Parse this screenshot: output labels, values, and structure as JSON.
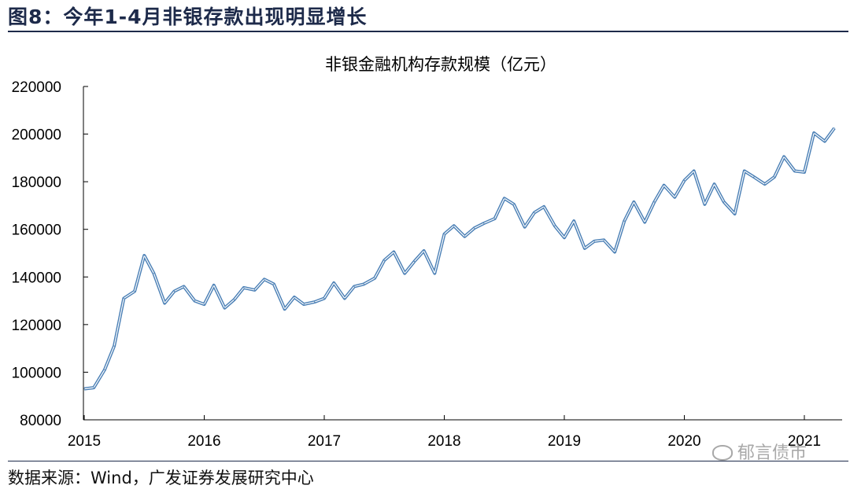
{
  "header": {
    "figure_title": "图8：今年1-4月非银存款出现明显增长"
  },
  "footer": {
    "source": "数据来源：Wind，广发证券发展研究中心",
    "watermark": "郁言债市"
  },
  "chart_data": {
    "type": "line",
    "title": "非银金融机构存款规模（亿元）",
    "xlabel": "",
    "ylabel": "",
    "ylim": [
      80000,
      220000
    ],
    "yticks": [
      80000,
      100000,
      120000,
      140000,
      160000,
      180000,
      200000,
      220000
    ],
    "ytick_labels": [
      "80000",
      "100000",
      "120000",
      "140000",
      "160000",
      "180000",
      "200000",
      "220000"
    ],
    "xticks": [
      2015,
      2016,
      2017,
      2018,
      2019,
      2020,
      2021
    ],
    "xtick_labels": [
      "2015",
      "2016",
      "2017",
      "2018",
      "2019",
      "2020",
      "2021"
    ],
    "xlim": [
      2015,
      2021.33
    ],
    "grid": false,
    "legend": "none",
    "line_color": "#4a7fb5",
    "series": [
      {
        "name": "",
        "x": [
          2015.0,
          2015.08,
          2015.17,
          2015.25,
          2015.33,
          2015.42,
          2015.5,
          2015.58,
          2015.67,
          2015.75,
          2015.83,
          2015.92,
          2016.0,
          2016.08,
          2016.17,
          2016.25,
          2016.33,
          2016.42,
          2016.5,
          2016.58,
          2016.67,
          2016.75,
          2016.83,
          2016.92,
          2017.0,
          2017.08,
          2017.17,
          2017.25,
          2017.33,
          2017.42,
          2017.5,
          2017.58,
          2017.67,
          2017.75,
          2017.83,
          2017.92,
          2018.0,
          2018.08,
          2018.17,
          2018.25,
          2018.33,
          2018.42,
          2018.5,
          2018.58,
          2018.67,
          2018.75,
          2018.83,
          2018.92,
          2019.0,
          2019.08,
          2019.17,
          2019.25,
          2019.33,
          2019.42,
          2019.5,
          2019.58,
          2019.67,
          2019.75,
          2019.83,
          2019.92,
          2020.0,
          2020.08,
          2020.17,
          2020.25,
          2020.33,
          2020.42,
          2020.5,
          2020.58,
          2020.67,
          2020.75,
          2020.83,
          2020.92,
          2021.0,
          2021.08,
          2021.17,
          2021.25
        ],
        "values": [
          93000,
          93500,
          101000,
          111000,
          131000,
          134000,
          149000,
          141500,
          129000,
          134000,
          136000,
          130000,
          128500,
          136500,
          127000,
          130500,
          135500,
          134500,
          139000,
          137000,
          126500,
          131500,
          128500,
          129500,
          131000,
          137500,
          131000,
          136000,
          137000,
          139500,
          147000,
          150500,
          141500,
          146500,
          151000,
          141500,
          158000,
          161500,
          157000,
          160500,
          162500,
          164500,
          173000,
          170500,
          161000,
          167000,
          169500,
          161500,
          156500,
          163500,
          152000,
          155000,
          155500,
          150500,
          163500,
          171500,
          163000,
          171500,
          178500,
          173500,
          180500,
          184500,
          170500,
          179000,
          171500,
          166500,
          184500,
          182000,
          179000,
          182000,
          190500,
          184500,
          184000,
          200500,
          197000,
          202500
        ]
      }
    ]
  }
}
